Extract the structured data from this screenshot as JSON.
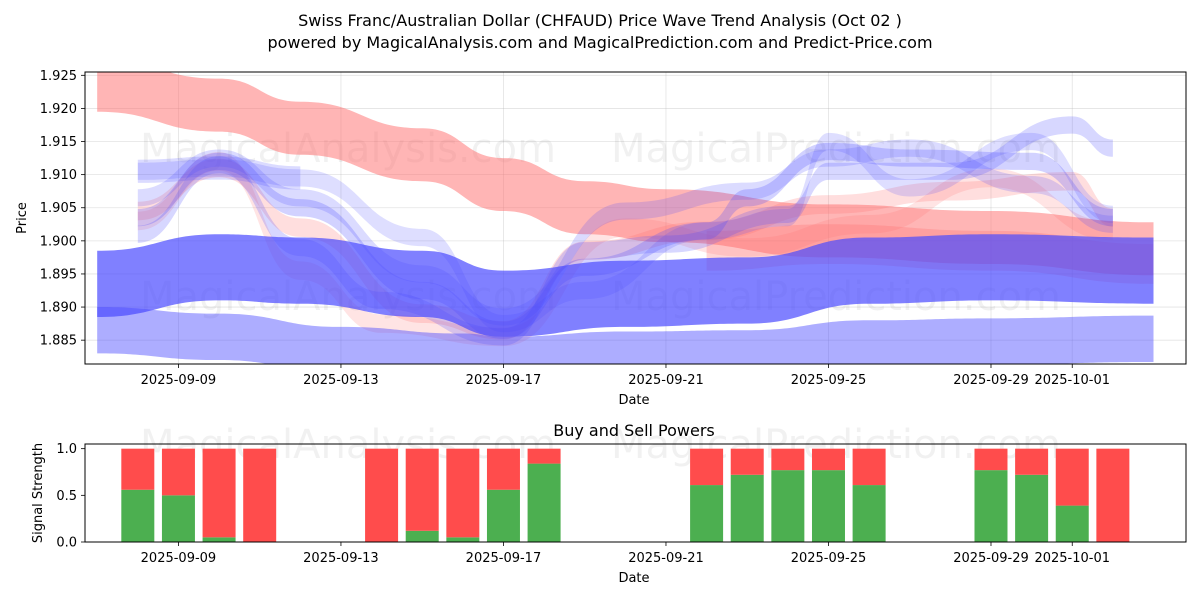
{
  "title_line1": "Swiss Franc/Australian Dollar (CHFAUD) Price Wave Trend Analysis (Oct 02 )",
  "title_line2": "powered by MagicalAnalysis.com and MagicalPrediction.com and Predict-Price.com",
  "watermarks": [
    "MagicalAnalysis.com",
    "MagicalPrediction.com"
  ],
  "colors": {
    "red_band": "#ff6b6b",
    "blue_band": "#4a4aff",
    "buy": "#4caf50",
    "sell": "#ff4c4c"
  },
  "chart_data": [
    {
      "type": "area",
      "title": "",
      "xlabel": "Date",
      "ylabel": "Price",
      "ylim": [
        1.8814,
        1.9255
      ],
      "xlim": [
        "2025-09-06.7",
        "2025-10-03.8"
      ],
      "xticks": [
        "2025-09-09",
        "2025-09-13",
        "2025-09-17",
        "2025-09-21",
        "2025-09-25",
        "2025-09-29",
        "2025-10-01"
      ],
      "yticks": [
        "1.885",
        "1.890",
        "1.895",
        "1.900",
        "1.905",
        "1.910",
        "1.915",
        "1.920",
        "1.925"
      ],
      "grid": true,
      "series": [
        {
          "name": "red-trend-main",
          "color": "red",
          "x": [
            "2025-09-07",
            "2025-09-10",
            "2025-09-12",
            "2025-09-15",
            "2025-09-17",
            "2025-09-19",
            "2025-09-21",
            "2025-09-25",
            "2025-09-29",
            "2025-10-03"
          ],
          "center": [
            1.9235,
            1.9205,
            1.917,
            1.913,
            1.9085,
            1.905,
            1.9038,
            1.9015,
            1.9005,
            1.8988
          ],
          "width": 0.008,
          "opacity": 0.5
        },
        {
          "name": "red-wave-1",
          "color": "red",
          "x": [
            "2025-09-08",
            "2025-09-10",
            "2025-09-12",
            "2025-09-15",
            "2025-09-17",
            "2025-09-19",
            "2025-09-22",
            "2025-09-25",
            "2025-09-28",
            "2025-10-01",
            "2025-10-02"
          ],
          "center": [
            1.9045,
            1.911,
            1.902,
            1.889,
            1.8865,
            1.8985,
            1.9015,
            1.9055,
            1.9075,
            1.909,
            1.9035
          ],
          "width": 0.0028,
          "opacity": 0.22
        },
        {
          "name": "red-wave-2",
          "color": "red",
          "x": [
            "2025-09-08",
            "2025-09-10",
            "2025-09-12",
            "2025-09-14",
            "2025-09-17",
            "2025-09-20",
            "2025-09-23",
            "2025-09-26",
            "2025-09-29",
            "2025-10-02"
          ],
          "center": [
            1.903,
            1.912,
            1.8955,
            1.8875,
            1.8855,
            1.902,
            1.899,
            1.9025,
            1.9095,
            1.9015
          ],
          "width": 0.0028,
          "opacity": 0.18
        },
        {
          "name": "purple-band",
          "color": "red",
          "x": [
            "2025-09-22",
            "2025-09-25",
            "2025-09-29",
            "2025-10-03"
          ],
          "center": [
            1.8985,
            1.8995,
            1.8985,
            1.8965
          ],
          "width": 0.006,
          "opacity": 0.28
        },
        {
          "name": "blue-base-band",
          "color": "blue",
          "x": [
            "2025-09-07",
            "2025-09-10",
            "2025-09-12",
            "2025-09-15",
            "2025-09-17",
            "2025-09-20",
            "2025-09-23",
            "2025-09-26",
            "2025-09-29",
            "2025-10-03"
          ],
          "center": [
            1.8935,
            1.896,
            1.8955,
            1.8935,
            1.8905,
            1.892,
            1.8925,
            1.8955,
            1.896,
            1.8955
          ],
          "width": 0.01,
          "opacity": 0.7
        },
        {
          "name": "blue-lower-band",
          "color": "blue",
          "x": [
            "2025-09-07",
            "2025-09-10",
            "2025-09-13",
            "2025-09-16",
            "2025-09-17",
            "2025-09-20",
            "2025-09-23",
            "2025-09-26",
            "2025-09-29",
            "2025-10-03"
          ],
          "center": [
            1.8865,
            1.8855,
            1.8835,
            1.8825,
            1.882,
            1.8828,
            1.883,
            1.8845,
            1.8848,
            1.8852
          ],
          "width": 0.007,
          "opacity": 0.45
        },
        {
          "name": "blue-wave-1",
          "color": "blue",
          "x": [
            "2025-09-08",
            "2025-09-10",
            "2025-09-12",
            "2025-09-15",
            "2025-09-17",
            "2025-09-19",
            "2025-09-22",
            "2025-09-23",
            "2025-09-25",
            "2025-09-27",
            "2025-09-30",
            "2025-10-02"
          ],
          "center": [
            1.9035,
            1.912,
            1.905,
            1.8925,
            1.8865,
            1.896,
            1.9015,
            1.9065,
            1.9135,
            1.9125,
            1.912,
            1.9035
          ],
          "width": 0.0026,
          "opacity": 0.25
        },
        {
          "name": "blue-wave-2",
          "color": "blue",
          "x": [
            "2025-09-08",
            "2025-09-10",
            "2025-09-12",
            "2025-09-14",
            "2025-09-17",
            "2025-09-19",
            "2025-09-21",
            "2025-09-24",
            "2025-09-25",
            "2025-09-28",
            "2025-10-01",
            "2025-10-02"
          ],
          "center": [
            1.901,
            1.9115,
            1.899,
            1.891,
            1.8855,
            1.8985,
            1.8995,
            1.904,
            1.9105,
            1.9105,
            1.9175,
            1.914
          ],
          "width": 0.0026,
          "opacity": 0.22
        },
        {
          "name": "blue-wave-3",
          "color": "blue",
          "x": [
            "2025-09-08",
            "2025-09-10",
            "2025-09-12",
            "2025-09-15",
            "2025-09-17",
            "2025-09-20",
            "2025-09-23",
            "2025-09-25",
            "2025-09-27",
            "2025-09-30",
            "2025-10-02"
          ],
          "center": [
            1.9065,
            1.9125,
            1.9065,
            1.895,
            1.8885,
            1.9045,
            1.9075,
            1.9125,
            1.914,
            1.9085,
            1.9025
          ],
          "width": 0.0026,
          "opacity": 0.2
        },
        {
          "name": "blue-wave-4",
          "color": "blue",
          "x": [
            "2025-09-08",
            "2025-09-10",
            "2025-09-12",
            "2025-09-15",
            "2025-09-17",
            "2025-09-19",
            "2025-09-22",
            "2025-09-24",
            "2025-09-25",
            "2025-09-27",
            "2025-09-30",
            "2025-10-02"
          ],
          "center": [
            1.9105,
            1.911,
            1.9095,
            1.9005,
            1.8875,
            1.8925,
            1.9015,
            1.9035,
            1.915,
            1.908,
            1.915,
            1.904
          ],
          "width": 0.0026,
          "opacity": 0.18
        },
        {
          "name": "blue-flat-1",
          "color": "blue",
          "x": [
            "2025-09-08",
            "2025-09-10",
            "2025-09-12"
          ],
          "center": [
            1.9105,
            1.911,
            1.9095
          ],
          "width": 0.0035,
          "opacity": 0.2
        }
      ]
    },
    {
      "type": "bar",
      "title": "Buy and Sell Powers",
      "xlabel": "Date",
      "ylabel": "Signal Strength",
      "ylim": [
        0,
        1.05
      ],
      "xticks": [
        "2025-09-09",
        "2025-09-13",
        "2025-09-17",
        "2025-09-21",
        "2025-09-25",
        "2025-09-29",
        "2025-10-01"
      ],
      "yticks": [
        "0.0",
        "0.5",
        "1.0"
      ],
      "categories": [
        "2025-09-08",
        "2025-09-09",
        "2025-09-10",
        "2025-09-11",
        "2025-09-14",
        "2025-09-15",
        "2025-09-16",
        "2025-09-17",
        "2025-09-18",
        "2025-09-22",
        "2025-09-23",
        "2025-09-24",
        "2025-09-25",
        "2025-09-26",
        "2025-09-29",
        "2025-09-30",
        "2025-10-01",
        "2025-10-02"
      ],
      "series": [
        {
          "name": "Buy",
          "values": [
            0.56,
            0.5,
            0.05,
            0.0,
            0.0,
            0.12,
            0.05,
            0.56,
            0.84,
            0.61,
            0.72,
            0.77,
            0.77,
            0.61,
            0.77,
            0.72,
            0.39,
            0.0
          ]
        },
        {
          "name": "Sell",
          "values": [
            0.44,
            0.5,
            0.95,
            1.0,
            1.0,
            0.88,
            0.95,
            0.44,
            0.16,
            0.39,
            0.28,
            0.23,
            0.23,
            0.39,
            0.23,
            0.28,
            0.61,
            1.0
          ]
        }
      ]
    }
  ]
}
